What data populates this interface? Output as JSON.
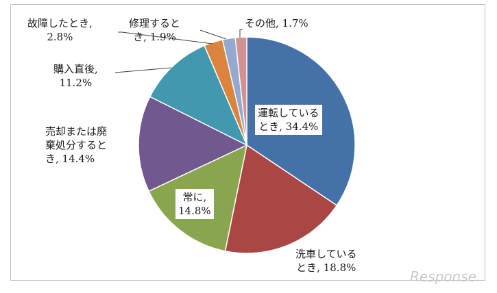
{
  "chart_data": {
    "type": "pie",
    "title": "",
    "start_angle_deg": 0,
    "direction": "clockwise",
    "slices": [
      {
        "line1": "運転している",
        "line2": "とき, 34.4%",
        "value": 34.4,
        "color": "#4472a8"
      },
      {
        "line1": "洗車している",
        "line2": "とき, 18.8%",
        "value": 18.8,
        "color": "#aa4643"
      },
      {
        "line1": "常に,",
        "line2": "14.8%",
        "value": 14.8,
        "color": "#89a54e"
      },
      {
        "line1": "売却または廃",
        "line2": "棄処分すると",
        "line3": "き, 14.4%",
        "value": 14.4,
        "color": "#71588f"
      },
      {
        "line1": "購入直後,",
        "line2": "11.2%",
        "value": 11.2,
        "color": "#4198af"
      },
      {
        "line1": "故障したとき,",
        "line2": "2.8%",
        "value": 2.8,
        "color": "#db843d"
      },
      {
        "line1": "修理すると",
        "line2": "き, 1.9%",
        "value": 1.9,
        "color": "#93a9cf"
      },
      {
        "line1": "その他, 1.7%",
        "value": 1.7,
        "color": "#d19392"
      }
    ]
  },
  "watermark": "Response."
}
